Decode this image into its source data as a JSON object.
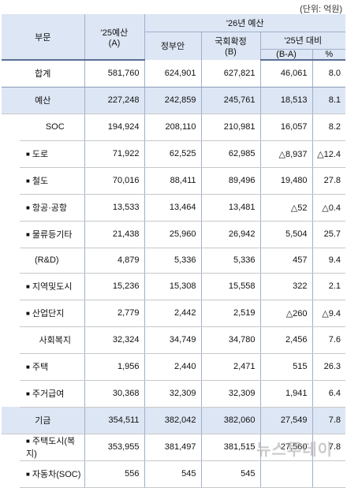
{
  "unit_note": "(단위: 억원)",
  "headers": {
    "category": "부문",
    "budget25_line1": "'25예산",
    "budget25_line2": "(A)",
    "budget26": "'26년 예산",
    "gov_proposal": "정부안",
    "confirmed_line1": "국회확정",
    "confirmed_line2": "(B)",
    "vs25": "'25년 대비",
    "diff": "(B-A)",
    "pct": "%"
  },
  "rows": [
    {
      "name": "합계",
      "a": "581,760",
      "gov": "624,901",
      "b": "627,821",
      "diff": "46,061",
      "pct": "8.0",
      "style": "total"
    },
    {
      "name": "예산",
      "a": "227,248",
      "gov": "242,859",
      "b": "245,761",
      "diff": "18,513",
      "pct": "8.1",
      "style": "blue"
    },
    {
      "name": "SOC",
      "a": "194,924",
      "gov": "208,110",
      "b": "210,981",
      "diff": "16,057",
      "pct": "8.2",
      "style": "cat"
    },
    {
      "name": "도로",
      "a": "71,922",
      "gov": "62,525",
      "b": "62,985",
      "diff": "△8,937",
      "pct": "△12.4",
      "style": "item"
    },
    {
      "name": "철도",
      "a": "70,016",
      "gov": "88,411",
      "b": "89,496",
      "diff": "19,480",
      "pct": "27.8",
      "style": "item"
    },
    {
      "name": "항공·공항",
      "a": "13,533",
      "gov": "13,464",
      "b": "13,481",
      "diff": "△52",
      "pct": "△0.4",
      "style": "item"
    },
    {
      "name": "물류등기타",
      "a": "21,438",
      "gov": "25,960",
      "b": "26,942",
      "diff": "5,504",
      "pct": "25.7",
      "style": "item"
    },
    {
      "name": "(R&D)",
      "a": "4,879",
      "gov": "5,336",
      "b": "5,336",
      "diff": "457",
      "pct": "9.4",
      "style": "sub"
    },
    {
      "name": "지역및도시",
      "a": "15,236",
      "gov": "15,308",
      "b": "15,558",
      "diff": "322",
      "pct": "2.1",
      "style": "item"
    },
    {
      "name": "산업단지",
      "a": "2,779",
      "gov": "2,442",
      "b": "2,519",
      "diff": "△260",
      "pct": "△9.4",
      "style": "item"
    },
    {
      "name": "사회복지",
      "a": "32,324",
      "gov": "34,749",
      "b": "34,780",
      "diff": "2,456",
      "pct": "7.6",
      "style": "cat"
    },
    {
      "name": "주택",
      "a": "1,956",
      "gov": "2,440",
      "b": "2,471",
      "diff": "515",
      "pct": "26.3",
      "style": "item"
    },
    {
      "name": "주거급여",
      "a": "30,368",
      "gov": "32,309",
      "b": "32,309",
      "diff": "1,941",
      "pct": "6.4",
      "style": "item"
    },
    {
      "name": "기금",
      "a": "354,511",
      "gov": "382,042",
      "b": "382,060",
      "diff": "27,549",
      "pct": "7.8",
      "style": "blue"
    },
    {
      "name": "주택도시(복지)",
      "a": "353,955",
      "gov": "381,497",
      "b": "381,515",
      "diff": "27,560",
      "pct": "7.8",
      "style": "item"
    },
    {
      "name": "자동차(SOC)",
      "a": "556",
      "gov": "545",
      "b": "545",
      "diff": "",
      "pct": "",
      "style": "item"
    }
  ],
  "watermark": "뉴스투데이"
}
